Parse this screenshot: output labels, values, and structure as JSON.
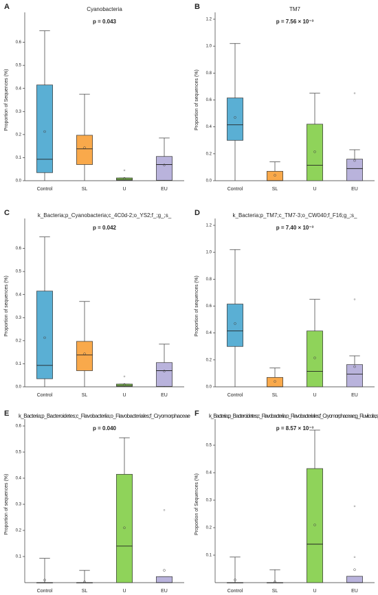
{
  "chart_data": [
    {
      "type": "box",
      "label": "A",
      "title": "Cyanobacteria",
      "annotation": "p = 0.043",
      "ylabel": "Proportion of Sequences (%)",
      "categories": [
        "Control",
        "SL",
        "U",
        "EU"
      ],
      "colors": [
        "#5aafd4",
        "#f9a94b",
        "#8fd35a",
        "#b9b3dc"
      ],
      "boxes": [
        {
          "whislo": 0,
          "q1": 0.035,
          "med": 0.093,
          "q3": 0.415,
          "whishi": 0.65,
          "mean": 0.213,
          "fliers": []
        },
        {
          "whislo": 0,
          "q1": 0.07,
          "med": 0.138,
          "q3": 0.197,
          "whishi": 0.375,
          "mean": 0.143,
          "fliers": []
        },
        {
          "whislo": 0,
          "q1": 0.002,
          "med": 0.006,
          "q3": 0.012,
          "whishi": 0.012,
          "mean": 0.01,
          "fliers": [
            0.045
          ]
        },
        {
          "whislo": 0,
          "q1": 0.002,
          "med": 0.07,
          "q3": 0.105,
          "whishi": 0.185,
          "mean": 0.068,
          "fliers": []
        }
      ],
      "ylim": [
        0,
        0.7
      ],
      "yticks": [
        {
          "value": 0,
          "label": "0.0"
        },
        0.1,
        0.2,
        0.3,
        0.4,
        0.5,
        0.6
      ]
    },
    {
      "type": "box",
      "label": "B",
      "title": "TM7",
      "annotation": "p = 7.56 × 10⁻³",
      "ylabel": "Proportion of sequences (%)",
      "categories": [
        "Control",
        "SL",
        "U",
        "EU"
      ],
      "colors": [
        "#5aafd4",
        "#f9a94b",
        "#8fd35a",
        "#b9b3dc"
      ],
      "boxes": [
        {
          "whislo": 0,
          "q1": 0.3,
          "med": 0.415,
          "q3": 0.615,
          "whishi": 1.02,
          "mean": 0.47,
          "fliers": []
        },
        {
          "whislo": 0,
          "q1": 0,
          "med": 0,
          "q3": 0.07,
          "whishi": 0.14,
          "mean": 0.04,
          "fliers": []
        },
        {
          "whislo": 0,
          "q1": 0,
          "med": 0.115,
          "q3": 0.42,
          "whishi": 0.65,
          "mean": 0.215,
          "fliers": []
        },
        {
          "whislo": 0,
          "q1": 0,
          "med": 0.09,
          "q3": 0.16,
          "whishi": 0.23,
          "mean": 0.15,
          "fliers": [
            0.65
          ]
        }
      ],
      "ylim": [
        0,
        1.2
      ],
      "yticks": [
        {
          "value": 0,
          "label": "0.0"
        },
        0.2,
        0.4,
        0.6,
        0.8,
        {
          "value": 1,
          "label": "1.0"
        },
        1.2
      ]
    },
    {
      "type": "box",
      "label": "C",
      "title": "k_Bacteria;p_Cyanobacteria;c_4C0d-2;o_YS2;f_;g_;s_",
      "annotation": "p = 0.042",
      "ylabel": "Proportion of sequences (%)",
      "categories": [
        "Control",
        "SL",
        "U",
        "EU"
      ],
      "colors": [
        "#5aafd4",
        "#f9a94b",
        "#8fd35a",
        "#b9b3dc"
      ],
      "boxes": [
        {
          "whislo": 0,
          "q1": 0.035,
          "med": 0.093,
          "q3": 0.415,
          "whishi": 0.65,
          "mean": 0.213,
          "fliers": []
        },
        {
          "whislo": 0,
          "q1": 0.07,
          "med": 0.138,
          "q3": 0.197,
          "whishi": 0.37,
          "mean": 0.143,
          "fliers": []
        },
        {
          "whislo": 0,
          "q1": 0.002,
          "med": 0.006,
          "q3": 0.012,
          "whishi": 0.012,
          "mean": 0.01,
          "fliers": [
            0.045
          ]
        },
        {
          "whislo": 0,
          "q1": 0.002,
          "med": 0.07,
          "q3": 0.105,
          "whishi": 0.185,
          "mean": 0.068,
          "fliers": []
        }
      ],
      "ylim": [
        0,
        0.7
      ],
      "yticks": [
        {
          "value": 0,
          "label": "0.0"
        },
        0.1,
        0.2,
        0.3,
        0.4,
        0.5,
        0.6
      ]
    },
    {
      "type": "box",
      "label": "D",
      "title": "k_Bacteria;p_TM7;c_TM7-3;o_CW040;f_F16;g_;s_",
      "annotation": "p = 7.40 × 10⁻³",
      "ylabel": "Proportion of sequences (%)",
      "categories": [
        "Control",
        "SL",
        "U",
        "EU"
      ],
      "colors": [
        "#5aafd4",
        "#f9a94b",
        "#8fd35a",
        "#b9b3dc"
      ],
      "boxes": [
        {
          "whislo": 0,
          "q1": 0.3,
          "med": 0.415,
          "q3": 0.615,
          "whishi": 1.02,
          "mean": 0.47,
          "fliers": []
        },
        {
          "whislo": 0,
          "q1": 0,
          "med": 0,
          "q3": 0.07,
          "whishi": 0.14,
          "mean": 0.04,
          "fliers": []
        },
        {
          "whislo": 0,
          "q1": 0,
          "med": 0.115,
          "q3": 0.415,
          "whishi": 0.65,
          "mean": 0.215,
          "fliers": []
        },
        {
          "whislo": 0,
          "q1": 0,
          "med": 0.095,
          "q3": 0.165,
          "whishi": 0.23,
          "mean": 0.15,
          "fliers": [
            0.65
          ]
        }
      ],
      "ylim": [
        0,
        1.2
      ],
      "yticks": [
        {
          "value": 0,
          "label": "0.0"
        },
        0.2,
        0.4,
        0.6,
        0.8,
        {
          "value": 1,
          "label": "1.0"
        },
        1.2
      ]
    },
    {
      "type": "box",
      "label": "E",
      "title": "k_Bacteria;p_Bacteroidetes;c_Flavobacteriia;o_Flavobacteriales;f_Cryomorphaceae",
      "annotation": "p = 0.040",
      "ylabel": "Proportion of sequences (%)",
      "categories": [
        "Control",
        "SL",
        "U",
        "EU"
      ],
      "colors": [
        "#5aafd4",
        "#f9a94b",
        "#8fd35a",
        "#b9b3dc"
      ],
      "boxes": [
        {
          "whislo": 0,
          "q1": 0,
          "med": 0,
          "q3": 0,
          "whishi": 0.093,
          "mean": 0.01,
          "fliers": []
        },
        {
          "whislo": 0,
          "q1": 0,
          "med": 0,
          "q3": 0,
          "whishi": 0.047,
          "mean": 0.003,
          "fliers": []
        },
        {
          "whislo": 0,
          "q1": 0,
          "med": 0.14,
          "q3": 0.415,
          "whishi": 0.555,
          "mean": 0.21,
          "fliers": []
        },
        {
          "whislo": 0,
          "q1": 0,
          "med": 0,
          "q3": 0.023,
          "whishi": 0.023,
          "mean": 0.047,
          "fliers": [
            0.278
          ]
        }
      ],
      "ylim": [
        0,
        0.6
      ],
      "yticks": [
        0.1,
        0.2,
        0.3,
        0.4,
        0.5,
        0.6
      ]
    },
    {
      "type": "box",
      "label": "F",
      "title": "k_Bacteria;p_Bacteroidetes;c_Flavobacteriia;o_Flavobacteriales;f_Cryomorphaceae;g_Fluviicola;s_",
      "annotation": "p = 8.57 × 10⁻³",
      "ylabel": "Proportion of Sequences (%)",
      "categories": [
        "Control",
        "SL",
        "U",
        "EU"
      ],
      "colors": [
        "#5aafd4",
        "#f9a94b",
        "#8fd35a",
        "#b9b3dc"
      ],
      "boxes": [
        {
          "whislo": 0,
          "q1": 0,
          "med": 0,
          "q3": 0,
          "whishi": 0.093,
          "mean": 0.01,
          "fliers": []
        },
        {
          "whislo": 0,
          "q1": 0,
          "med": 0,
          "q3": 0,
          "whishi": 0.047,
          "mean": 0.003,
          "fliers": []
        },
        {
          "whislo": 0,
          "q1": 0,
          "med": 0.14,
          "q3": 0.415,
          "whishi": 0.555,
          "mean": 0.21,
          "fliers": []
        },
        {
          "whislo": 0,
          "q1": 0,
          "med": 0,
          "q3": 0.023,
          "whishi": 0.023,
          "mean": 0.047,
          "fliers": [
            0.093,
            0.278
          ]
        }
      ],
      "ylim": [
        0,
        0.57
      ],
      "yticks": [
        0.1,
        0.2,
        0.3,
        0.4,
        0.5
      ]
    }
  ]
}
